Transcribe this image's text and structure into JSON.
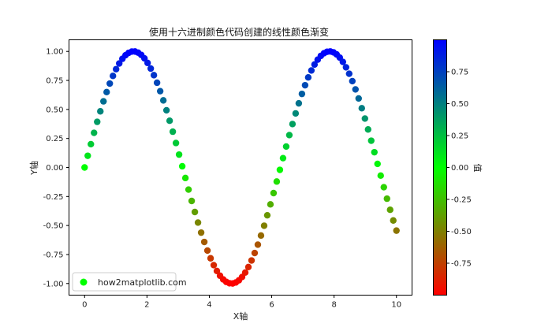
{
  "chart_data": {
    "type": "scatter",
    "title": "使用十六进制颜色代码创建的线性颜色渐变",
    "xlabel": "X轴",
    "ylabel": "Y轴",
    "xlim": [
      -0.5,
      10.5
    ],
    "ylim": [
      -1.1,
      1.1
    ],
    "xticks": [
      "0",
      "2",
      "4",
      "6",
      "8",
      "10"
    ],
    "yticks": [
      "-1.00",
      "-0.75",
      "-0.50",
      "-0.25",
      "0.00",
      "0.25",
      "0.50",
      "0.75",
      "1.00"
    ],
    "function": "y = sin(x)",
    "n_points": 100,
    "x_range": [
      0,
      10
    ],
    "colormap": [
      "#FF0000",
      "#00FF00",
      "#0000FF"
    ],
    "colorbar": {
      "label": "值",
      "range": [
        -1.0,
        1.0
      ],
      "ticks": [
        "0.75",
        "0.50",
        "0.25",
        "0.00",
        "-0.25",
        "-0.50",
        "-0.75"
      ]
    },
    "legend": {
      "label": "how2matplotlib.com",
      "position": "lower-left",
      "marker_color": "#00FF00"
    },
    "grid": false
  }
}
